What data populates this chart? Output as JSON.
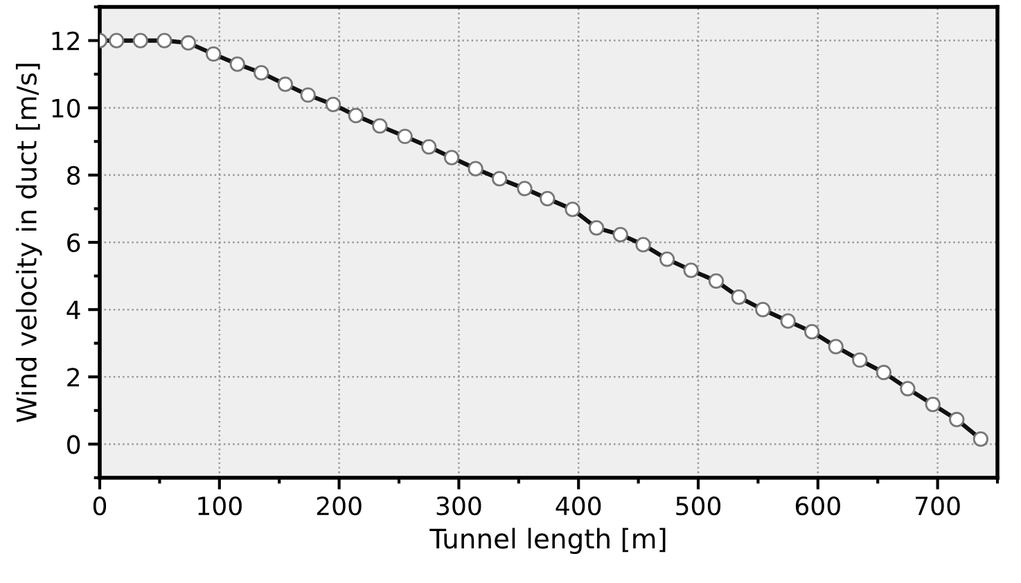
{
  "chart_data": {
    "type": "line",
    "xlabel": "Tunnel length [m]",
    "ylabel": "Wind velocity in duct [m/s]",
    "x": [
      0,
      14,
      34,
      54,
      74,
      95,
      115,
      135,
      155,
      174,
      195,
      214,
      234,
      255,
      275,
      294,
      314,
      334,
      355,
      374,
      395,
      415,
      435,
      454,
      474,
      494,
      515,
      534,
      554,
      575,
      595,
      615,
      635,
      655,
      675,
      696,
      716,
      736
    ],
    "series": [
      {
        "color": "#111111",
        "values": [
          12.0,
          12.0,
          12.0,
          12.0,
          11.93,
          11.6,
          11.3,
          11.04,
          10.7,
          10.38,
          10.1,
          9.77,
          9.46,
          9.15,
          8.84,
          8.52,
          8.19,
          7.89,
          7.6,
          7.3,
          6.98,
          6.43,
          6.23,
          5.93,
          5.5,
          5.17,
          4.85,
          4.37,
          4.0,
          3.66,
          3.34,
          2.9,
          2.5,
          2.13,
          1.65,
          1.18,
          0.73,
          0.15
        ]
      }
    ],
    "xlim": [
      0,
      750
    ],
    "ylim": [
      -1,
      13
    ],
    "xticks": [
      0,
      100,
      200,
      300,
      400,
      500,
      600,
      700
    ],
    "yticks": [
      0,
      2,
      4,
      6,
      8,
      10,
      12
    ],
    "grid": true,
    "marker": "circle",
    "line_style": "solid"
  }
}
